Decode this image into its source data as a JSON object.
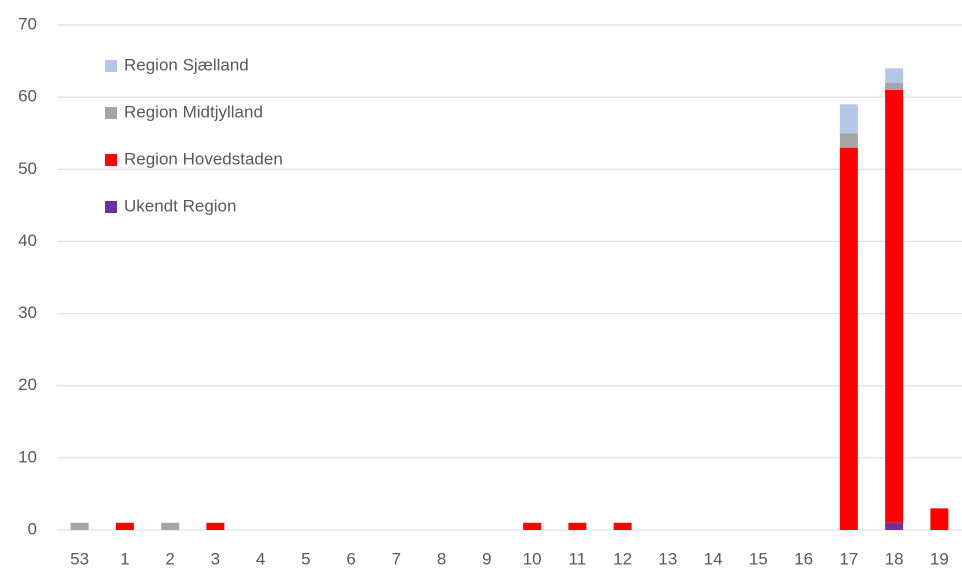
{
  "chart_data": {
    "type": "stacked_bar",
    "categories": [
      "53",
      "1",
      "2",
      "3",
      "4",
      "5",
      "6",
      "7",
      "8",
      "9",
      "10",
      "11",
      "12",
      "13",
      "14",
      "15",
      "16",
      "17",
      "18",
      "19"
    ],
    "series": [
      {
        "name": "Ukendt Region",
        "color": "#7030a0",
        "values": [
          0,
          0,
          0,
          0,
          0,
          0,
          0,
          0,
          0,
          0,
          0,
          0,
          0,
          0,
          0,
          0,
          0,
          0,
          1,
          0
        ]
      },
      {
        "name": "Region Hovedstaden",
        "color": "#ff0000",
        "values": [
          0,
          1,
          0,
          1,
          0,
          0,
          0,
          0,
          0,
          0,
          1,
          1,
          1,
          0,
          0,
          0,
          0,
          53,
          60,
          3
        ]
      },
      {
        "name": "Region Midtjylland",
        "color": "#a5a5a5",
        "values": [
          1,
          0,
          1,
          0,
          0,
          0,
          0,
          0,
          0,
          0,
          0,
          0,
          0,
          0,
          0,
          0,
          0,
          2,
          1,
          0
        ]
      },
      {
        "name": "Region Sjælland",
        "color": "#b4c7e7",
        "values": [
          0,
          0,
          0,
          0,
          0,
          0,
          0,
          0,
          0,
          0,
          0,
          0,
          0,
          0,
          0,
          0,
          0,
          4,
          2,
          0
        ]
      }
    ],
    "ylim": [
      0,
      70
    ],
    "yticks": [
      0,
      10,
      20,
      30,
      40,
      50,
      60,
      70
    ],
    "grid": true,
    "legend": "upper left"
  }
}
